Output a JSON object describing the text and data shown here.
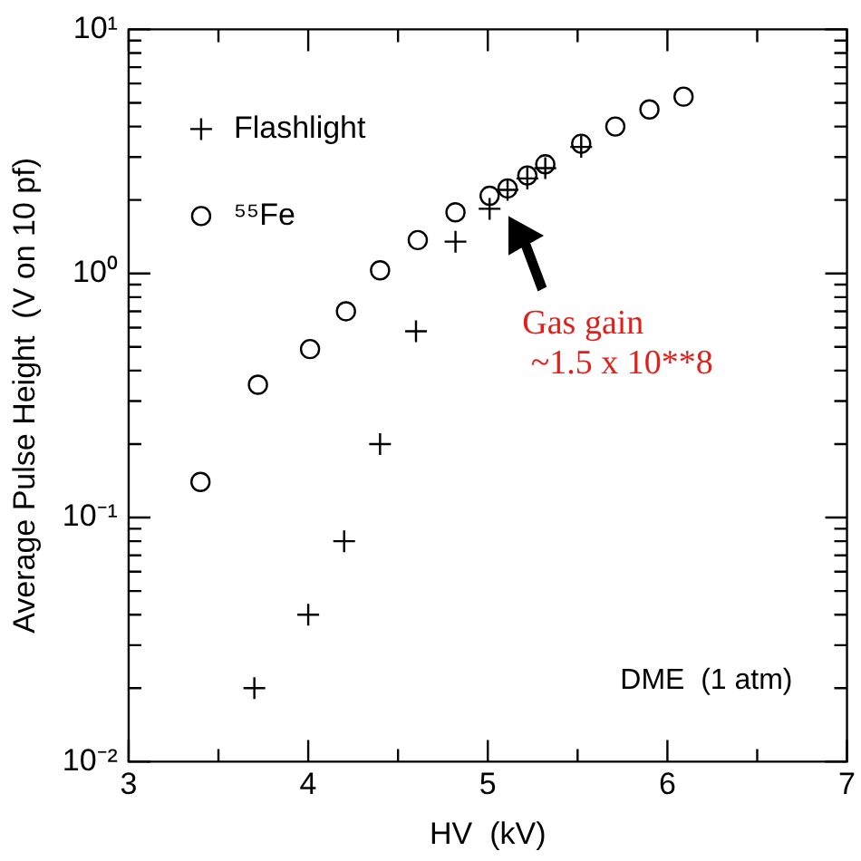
{
  "chart_data": {
    "type": "scatter",
    "xlabel": "HV  (kV)",
    "ylabel": "Average Pulse Height  (V on 10 pf)",
    "log": "y",
    "grid": false,
    "legend": "top left",
    "xlim": [
      3,
      7
    ],
    "xticks": [
      3,
      {
        "value": 3.5,
        "label": null
      },
      4,
      {
        "value": 4.5,
        "label": null
      },
      5,
      {
        "value": 5.5,
        "label": null
      },
      6,
      {
        "value": 6.5,
        "label": null
      },
      7
    ],
    "ylim": [
      0.01,
      10
    ],
    "yticks": [
      {
        "value": 0.01,
        "label": "10⁻²"
      },
      {
        "value": 0.02,
        "label": null
      },
      {
        "value": 0.03,
        "label": null
      },
      {
        "value": 0.04,
        "label": null
      },
      {
        "value": 0.05,
        "label": null
      },
      {
        "value": 0.06,
        "label": null
      },
      {
        "value": 0.07,
        "label": null
      },
      {
        "value": 0.08,
        "label": null
      },
      {
        "value": 0.09,
        "label": null
      },
      {
        "value": 0.1,
        "label": "10⁻¹"
      },
      {
        "value": 0.2,
        "label": null
      },
      {
        "value": 0.3,
        "label": null
      },
      {
        "value": 0.4,
        "label": null
      },
      {
        "value": 0.5,
        "label": null
      },
      {
        "value": 0.6,
        "label": null
      },
      {
        "value": 0.7,
        "label": null
      },
      {
        "value": 0.8,
        "label": null
      },
      {
        "value": 0.9,
        "label": null
      },
      {
        "value": 1,
        "label": "10⁰"
      },
      {
        "value": 2,
        "label": null
      },
      {
        "value": 3,
        "label": null
      },
      {
        "value": 4,
        "label": null
      },
      {
        "value": 5,
        "label": null
      },
      {
        "value": 6,
        "label": null
      },
      {
        "value": 7,
        "label": null
      },
      {
        "value": 8,
        "label": null
      },
      {
        "value": 9,
        "label": null
      },
      {
        "value": 10,
        "label": "10¹"
      }
    ],
    "series": [
      {
        "name": "Flashlight",
        "color": "#000000",
        "marker": "cross",
        "x": [
          3.7,
          4.0,
          4.2,
          4.4,
          4.6,
          4.82,
          5.01,
          5.11,
          5.22,
          5.32,
          5.52
        ],
        "values": [
          0.02,
          0.04,
          0.08,
          0.2,
          0.58,
          1.35,
          1.84,
          2.2,
          2.45,
          2.7,
          3.3
        ]
      },
      {
        "name": "⁵⁵Fe",
        "color": "#000000",
        "marker": "circle",
        "x": [
          3.4,
          3.72,
          4.01,
          4.21,
          4.4,
          4.61,
          4.82,
          5.01,
          5.11,
          5.22,
          5.32,
          5.52,
          5.71,
          5.9,
          6.09
        ],
        "values": [
          0.14,
          0.35,
          0.49,
          0.7,
          1.03,
          1.37,
          1.78,
          2.08,
          2.23,
          2.52,
          2.8,
          3.4,
          4.0,
          4.7,
          5.3
        ]
      }
    ],
    "annotations": [
      "Gas gain\n ~1.5 x 10**8",
      "DME  (1 atm)"
    ]
  }
}
